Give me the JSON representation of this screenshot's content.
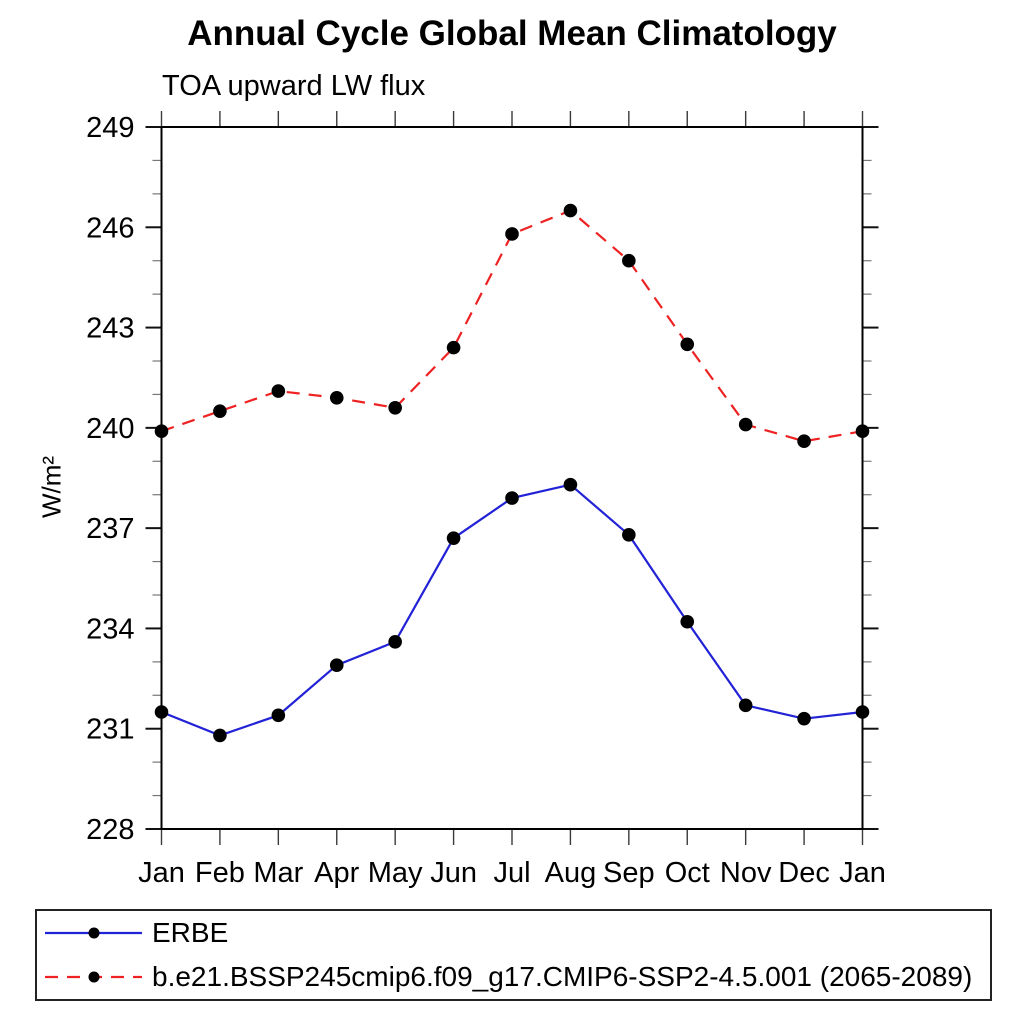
{
  "chart_data": {
    "type": "line",
    "title": "Annual Cycle Global Mean Climatology",
    "subtitle": "TOA upward LW flux",
    "ylabel": "W/m²",
    "xlabel": "",
    "categories": [
      "Jan",
      "Feb",
      "Mar",
      "Apr",
      "May",
      "Jun",
      "Jul",
      "Aug",
      "Sep",
      "Oct",
      "Nov",
      "Dec",
      "Jan"
    ],
    "series": [
      {
        "name": "ERBE",
        "line_style": "solid",
        "color": "#2222d6",
        "marker": "filled-circle",
        "marker_color": "#000000",
        "values": [
          231.5,
          230.8,
          231.4,
          232.9,
          233.6,
          236.7,
          237.9,
          238.3,
          236.8,
          234.2,
          231.7,
          231.3,
          231.5
        ]
      },
      {
        "name": "b.e21.BSSP245cmip6.f09_g17.CMIP6-SSP2-4.5.001 (2065-2089)",
        "line_style": "dashed",
        "color": "#ee2222",
        "marker": "filled-circle",
        "marker_color": "#000000",
        "values": [
          239.9,
          240.5,
          241.1,
          240.9,
          240.6,
          242.4,
          245.8,
          246.5,
          245.0,
          242.5,
          240.1,
          239.6,
          239.9
        ]
      }
    ],
    "ylim": [
      228,
      249
    ],
    "ytick_major_step": 3,
    "ytick_minor_step": 1,
    "grid": false,
    "legend_position": "bottom-left"
  }
}
